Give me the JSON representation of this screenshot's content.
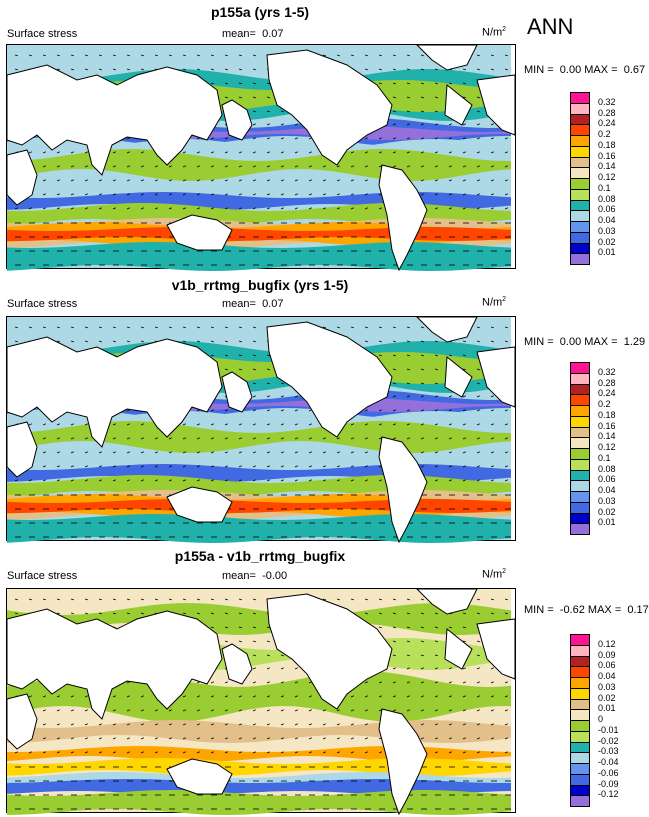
{
  "season": "ANN",
  "panels": [
    {
      "title": "p155a (yrs 1-5)",
      "variable": "Surface stress",
      "mean_label": "mean=",
      "mean_value": "0.07",
      "units": "N/m",
      "units_sup": "2",
      "min_label": "MIN =",
      "min_value": "0.00",
      "max_label": "MAX =",
      "max_value": "0.67",
      "colorbar": {
        "labels": [
          "0.32",
          "0.28",
          "0.24",
          "0.2",
          "0.18",
          "0.16",
          "0.14",
          "0.12",
          "0.1",
          "0.08",
          "0.06",
          "0.04",
          "0.03",
          "0.02",
          "0.01"
        ],
        "colors": [
          "#ff1493",
          "#ffb6c1",
          "#b22222",
          "#ff4500",
          "#ffa500",
          "#ffd700",
          "#e3c08a",
          "#f5e6c4",
          "#9acd32",
          "#b8e05a",
          "#20b2aa",
          "#add8e6",
          "#6495ed",
          "#4169e1",
          "#0000cd",
          "#9370db"
        ]
      }
    },
    {
      "title": "v1b_rrtmg_bugfix (yrs 1-5)",
      "variable": "Surface stress",
      "mean_label": "mean=",
      "mean_value": "0.07",
      "units": "N/m",
      "units_sup": "2",
      "min_label": "MIN =",
      "min_value": "0.00",
      "max_label": "MAX =",
      "max_value": "1.29",
      "colorbar": {
        "labels": [
          "0.32",
          "0.28",
          "0.24",
          "0.2",
          "0.18",
          "0.16",
          "0.14",
          "0.12",
          "0.1",
          "0.08",
          "0.06",
          "0.04",
          "0.03",
          "0.02",
          "0.01"
        ],
        "colors": [
          "#ff1493",
          "#ffb6c1",
          "#b22222",
          "#ff4500",
          "#ffa500",
          "#ffd700",
          "#e3c08a",
          "#f5e6c4",
          "#9acd32",
          "#b8e05a",
          "#20b2aa",
          "#add8e6",
          "#6495ed",
          "#4169e1",
          "#0000cd",
          "#9370db"
        ]
      }
    },
    {
      "title": "p155a - v1b_rrtmg_bugfix",
      "variable": "Surface stress",
      "mean_label": "mean=",
      "mean_value": "-0.00",
      "units": "N/m",
      "units_sup": "2",
      "min_label": "MIN =",
      "min_value": "-0.62",
      "max_label": "MAX =",
      "max_value": "0.17",
      "colorbar": {
        "labels": [
          "0.12",
          "0.09",
          "0.06",
          "0.04",
          "0.03",
          "0.02",
          "0.01",
          "0",
          "-0.01",
          "-0.02",
          "-0.03",
          "-0.04",
          "-0.06",
          "-0.09",
          "-0.12"
        ],
        "colors": [
          "#ff1493",
          "#ffb6c1",
          "#b22222",
          "#ff4500",
          "#ffa500",
          "#ffd700",
          "#e3c08a",
          "#f5e6c4",
          "#9acd32",
          "#b8e05a",
          "#20b2aa",
          "#add8e6",
          "#6495ed",
          "#4169e1",
          "#0000cd",
          "#9370db"
        ]
      }
    }
  ]
}
